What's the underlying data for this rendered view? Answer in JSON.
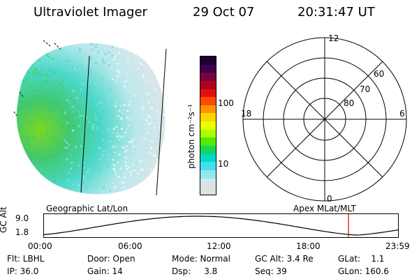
{
  "header": {
    "instrument": "Ultraviolet Imager",
    "date": "29 Oct 07",
    "time": "20:31:47 UT"
  },
  "colorbar": {
    "unit": "photon cm⁻²s⁻¹",
    "ticks": [
      "100",
      "10"
    ],
    "colors": [
      "#1a0033",
      "#3c0050",
      "#7a0040",
      "#b00020",
      "#e01010",
      "#ff4a00",
      "#ff9600",
      "#ffd200",
      "#e8ff00",
      "#a8ff00",
      "#5ae800",
      "#10d860",
      "#00d8c8",
      "#40e0f0",
      "#90e8f0",
      "#d0e8ec",
      "#e0e0e0"
    ]
  },
  "polar": {
    "mlt_labels": {
      "top": "12",
      "left": "18",
      "right": "6",
      "bottom": "0"
    },
    "lat_labels": [
      "60",
      "70",
      "80"
    ]
  },
  "timeline": {
    "left_label": "Geographic Lat/Lon",
    "right_label": "Apex MLat/MLT",
    "y_axis_label": "GC Alt",
    "y_ticks": [
      "9.0",
      "1.8"
    ],
    "x_ticks": [
      "00:00",
      "06:00",
      "12:00",
      "18:00",
      "23:59"
    ],
    "marker_color": "#e00000"
  },
  "status": {
    "flt": "Flt: LBHL",
    "ip": "IP: 36.0",
    "door": "Door: Open",
    "gain": "Gain: 14",
    "mode": "Mode: Normal",
    "dsp": "Dsp:     3.8",
    "gcalt": "GC Alt: 3.4 Re",
    "seq": "Seq: 39",
    "glat": "GLat:    1.1",
    "glon": "GLon: 160.6"
  }
}
